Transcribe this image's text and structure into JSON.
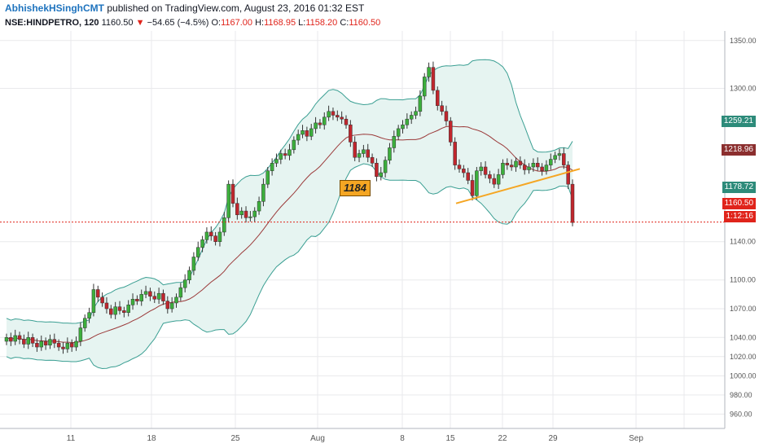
{
  "header": {
    "author": "AbhishekHSinghCMT",
    "published_text": "published on TradingView.com, August 23, 2016 01:32 EST",
    "symbol": "NSE:HINDPETRO, 120",
    "last": "1160.50",
    "change": "−54.65 (−4.5%)",
    "open_label": "O:",
    "open": "1167.00",
    "high_label": "H:",
    "high": "1168.95",
    "low_label": "L:",
    "low": "1158.20",
    "close_label": "C:",
    "close": "1160.50"
  },
  "colors": {
    "up": "#3caf3c",
    "down": "#c0262d",
    "band": "#3b9f93",
    "band_fill": "#e6f4f1",
    "basis": "#9b3a3a",
    "trendline": "#f5a623",
    "price_line": "#e0241b"
  },
  "annotation": "1184",
  "price_tags": [
    {
      "value": "1259.21",
      "color": "#2d8b7a"
    },
    {
      "value": "1218.96",
      "color": "#8b2e2e"
    },
    {
      "value": "1178.72",
      "color": "#2d8b7a"
    },
    {
      "value": "1160.50",
      "color": "#e0241b"
    },
    {
      "value": "1:12:16",
      "color": "#e0241b"
    }
  ],
  "chart_data": {
    "type": "candlestick",
    "x_ticks": [
      "11",
      "18",
      "25",
      "Aug",
      "8",
      "15",
      "22",
      "29",
      "Sep"
    ],
    "y_ticks": [
      "1350.00",
      "1300.00",
      "1259.21",
      "1218.96",
      "1178.72",
      "1160.50",
      "1140.00",
      "1100.00",
      "1070.00",
      "1040.00",
      "1020.00",
      "1000.00",
      "980.00",
      "960.00"
    ],
    "ohlc_close_series": [
      1040,
      1036,
      1042,
      1038,
      1033,
      1040,
      1034,
      1030,
      1036,
      1032,
      1038,
      1034,
      1030,
      1028,
      1034,
      1030,
      1036,
      1050,
      1060,
      1066,
      1090,
      1082,
      1076,
      1070,
      1064,
      1072,
      1068,
      1066,
      1074,
      1080,
      1078,
      1085,
      1088,
      1083,
      1080,
      1086,
      1078,
      1070,
      1076,
      1082,
      1092,
      1100,
      1110,
      1124,
      1134,
      1142,
      1150,
      1146,
      1140,
      1150,
      1165,
      1200,
      1180,
      1168,
      1172,
      1165,
      1166,
      1172,
      1182,
      1200,
      1214,
      1222,
      1226,
      1232,
      1230,
      1236,
      1246,
      1252,
      1256,
      1250,
      1258,
      1264,
      1262,
      1270,
      1276,
      1272,
      1270,
      1268,
      1262,
      1244,
      1228,
      1232,
      1236,
      1228,
      1222,
      1208,
      1212,
      1225,
      1238,
      1250,
      1258,
      1262,
      1268,
      1272,
      1276,
      1292,
      1312,
      1322,
      1298,
      1282,
      1276,
      1266,
      1244,
      1220,
      1216,
      1212,
      1204,
      1188,
      1214,
      1218,
      1210,
      1206,
      1200,
      1210,
      1222,
      1220,
      1218,
      1224,
      1220,
      1215,
      1218,
      1222,
      1218,
      1214,
      1220,
      1226,
      1230,
      1232,
      1220,
      1200,
      1160
    ],
    "bollinger": {
      "upper": "1259.21",
      "basis": "1218.96",
      "lower": "1178.72"
    },
    "last_price": 1160.5,
    "ylim": [
      945,
      1360
    ]
  }
}
